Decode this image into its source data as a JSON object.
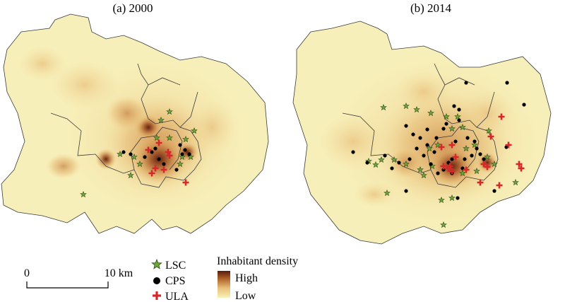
{
  "panels": [
    {
      "title": "(a) 2000",
      "year": 2000
    },
    {
      "title": "(b) 2014",
      "year": 2014
    }
  ],
  "scalebar": {
    "start_label": "0",
    "end_label": "10 km",
    "length_km": 10
  },
  "legend": {
    "symbols": [
      {
        "label": "LSC",
        "icon": "star-icon",
        "color": "#6fa63a"
      },
      {
        "label": "CPS",
        "icon": "dot-icon",
        "color": "#000000"
      },
      {
        "label": "ULA",
        "icon": "cross-icon",
        "color": "#d62828"
      }
    ],
    "density": {
      "title": "Inhabitant density",
      "high_label": "High",
      "low_label": "Low",
      "colors": [
        "#5a1a0a",
        "#b0662a",
        "#e9c27b",
        "#f7f1b8"
      ]
    }
  },
  "colors": {
    "base": "#f7efb9",
    "boundary": "#3a3a3a"
  }
}
